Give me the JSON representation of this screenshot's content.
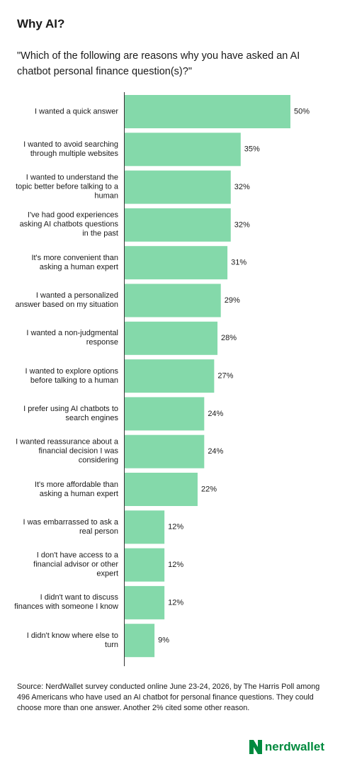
{
  "chart_data": {
    "type": "hbar",
    "title": "Why AI?",
    "subtitle": "\"Which of the following are reasons why you have asked an AI chatbot personal finance question(s)?\"",
    "categories": [
      "I wanted a quick answer",
      "I wanted to avoid searching through multiple websites",
      "I wanted to understand the topic better before talking to a human",
      "I've had good experiences asking AI chatbots questions in the past",
      "It's more convenient than asking a human expert",
      "I wanted a personalized answer based on my situation",
      "I wanted a non-judgmental response",
      "I wanted to explore options before talking to a human",
      "I prefer using AI chatbots to search engines",
      "I wanted reassurance about a financial decision I was considering",
      "It's more affordable than asking a human expert",
      "I was embarrassed to ask a real person",
      "I don't have access to a financial advisor or other expert",
      "I didn't want to discuss finances with someone I know",
      "I didn't know where else to turn"
    ],
    "values": [
      50,
      35,
      32,
      32,
      31,
      29,
      28,
      27,
      24,
      24,
      22,
      12,
      12,
      12,
      9
    ],
    "value_labels": [
      "50%",
      "35%",
      "32%",
      "32%",
      "31%",
      "29%",
      "28%",
      "27%",
      "24%",
      "24%",
      "22%",
      "12%",
      "12%",
      "12%",
      "9%"
    ],
    "color": "#84d9aa",
    "source": "Source: NerdWallet survey conducted online June 23-24, 2026, by The Harris Poll among 496 Americans who have used an AI chatbot for personal finance questions. They could choose more than one answer. Another 2% cited some other reason.",
    "logo": "nerdwallet"
  }
}
